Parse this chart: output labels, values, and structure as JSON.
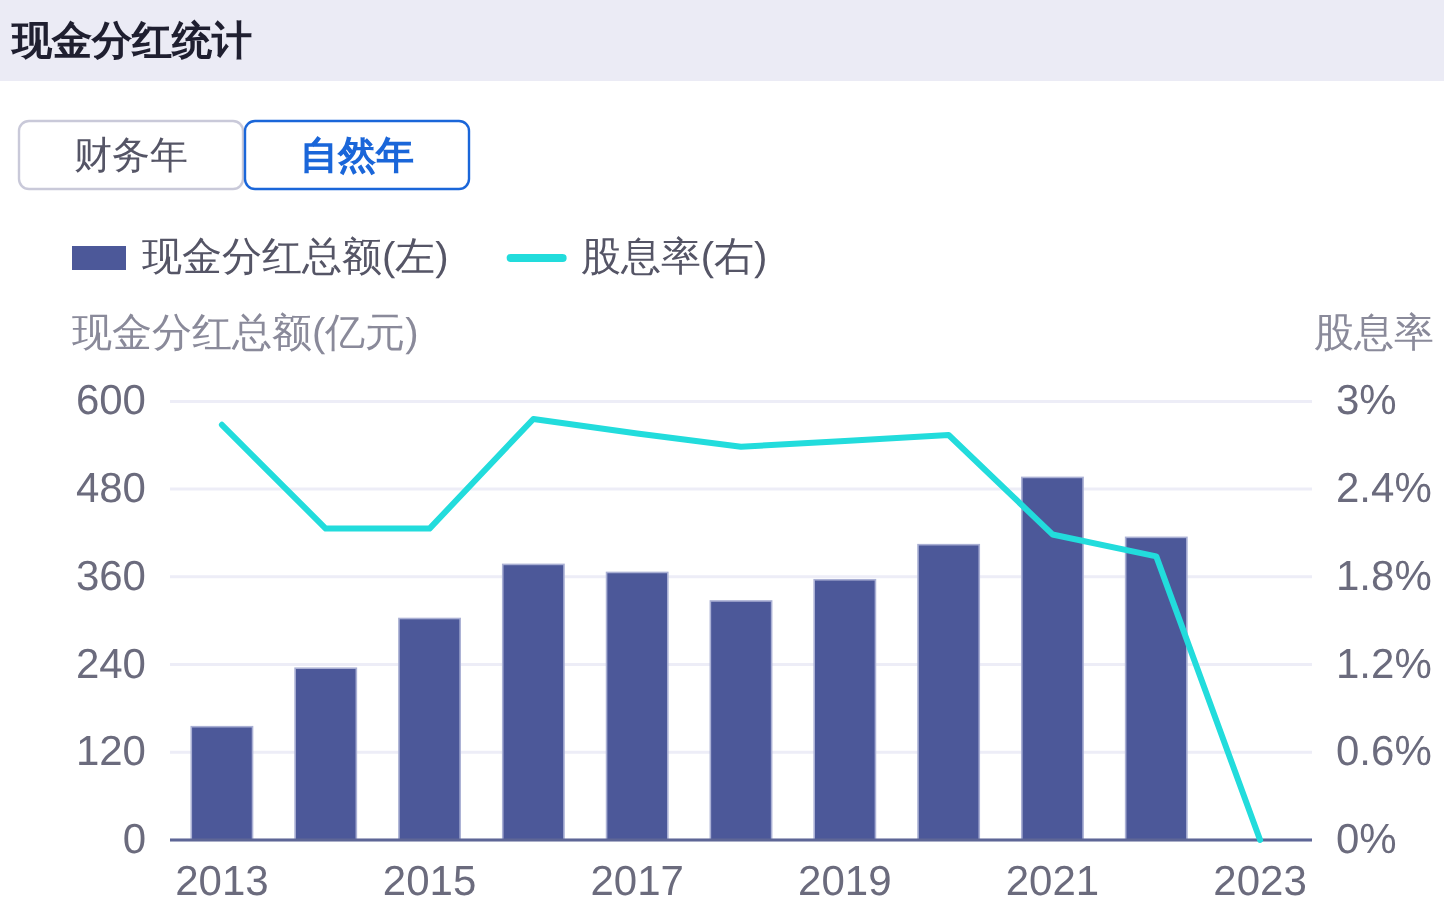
{
  "chart_data": {
    "type": "bar",
    "title": "现金分红统计",
    "annotations": [
      "财务年",
      "自然年"
    ],
    "categories": [
      "2013",
      null,
      "2015",
      null,
      "2017",
      null,
      "2019",
      null,
      "2021",
      null,
      "2023"
    ],
    "series": [
      {
        "name": "现金分红总额(左)",
        "color": "#4c5899",
        "values": [
          155,
          235,
          303,
          377,
          366,
          327,
          356,
          404,
          496,
          414,
          null
        ]
      },
      {
        "name": "股息率(右)",
        "type": "line",
        "axis": "y2",
        "color": "#22dcdc",
        "values": [
          2.84,
          2.13,
          2.13,
          2.88,
          2.78,
          2.69,
          2.73,
          2.77,
          2.09,
          1.94,
          0
        ]
      }
    ],
    "ylabel": "现金分红总额(亿元)",
    "y2label": "股息率",
    "ylim": [
      0,
      600
    ],
    "yticks": [
      0,
      120,
      240,
      360,
      480,
      600
    ],
    "y2lim": [
      0,
      3
    ],
    "y2ticks": [
      {
        "value": 0,
        "label": "0%"
      },
      {
        "value": 0.6,
        "label": "0.6%"
      },
      {
        "value": 1.2,
        "label": "1.2%"
      },
      {
        "value": 1.8,
        "label": "1.8%"
      },
      {
        "value": 2.4,
        "label": "2.4%"
      },
      {
        "value": 3,
        "label": "3%"
      }
    ],
    "grid": "y",
    "legend": "top left",
    "line_style": "solid"
  }
}
